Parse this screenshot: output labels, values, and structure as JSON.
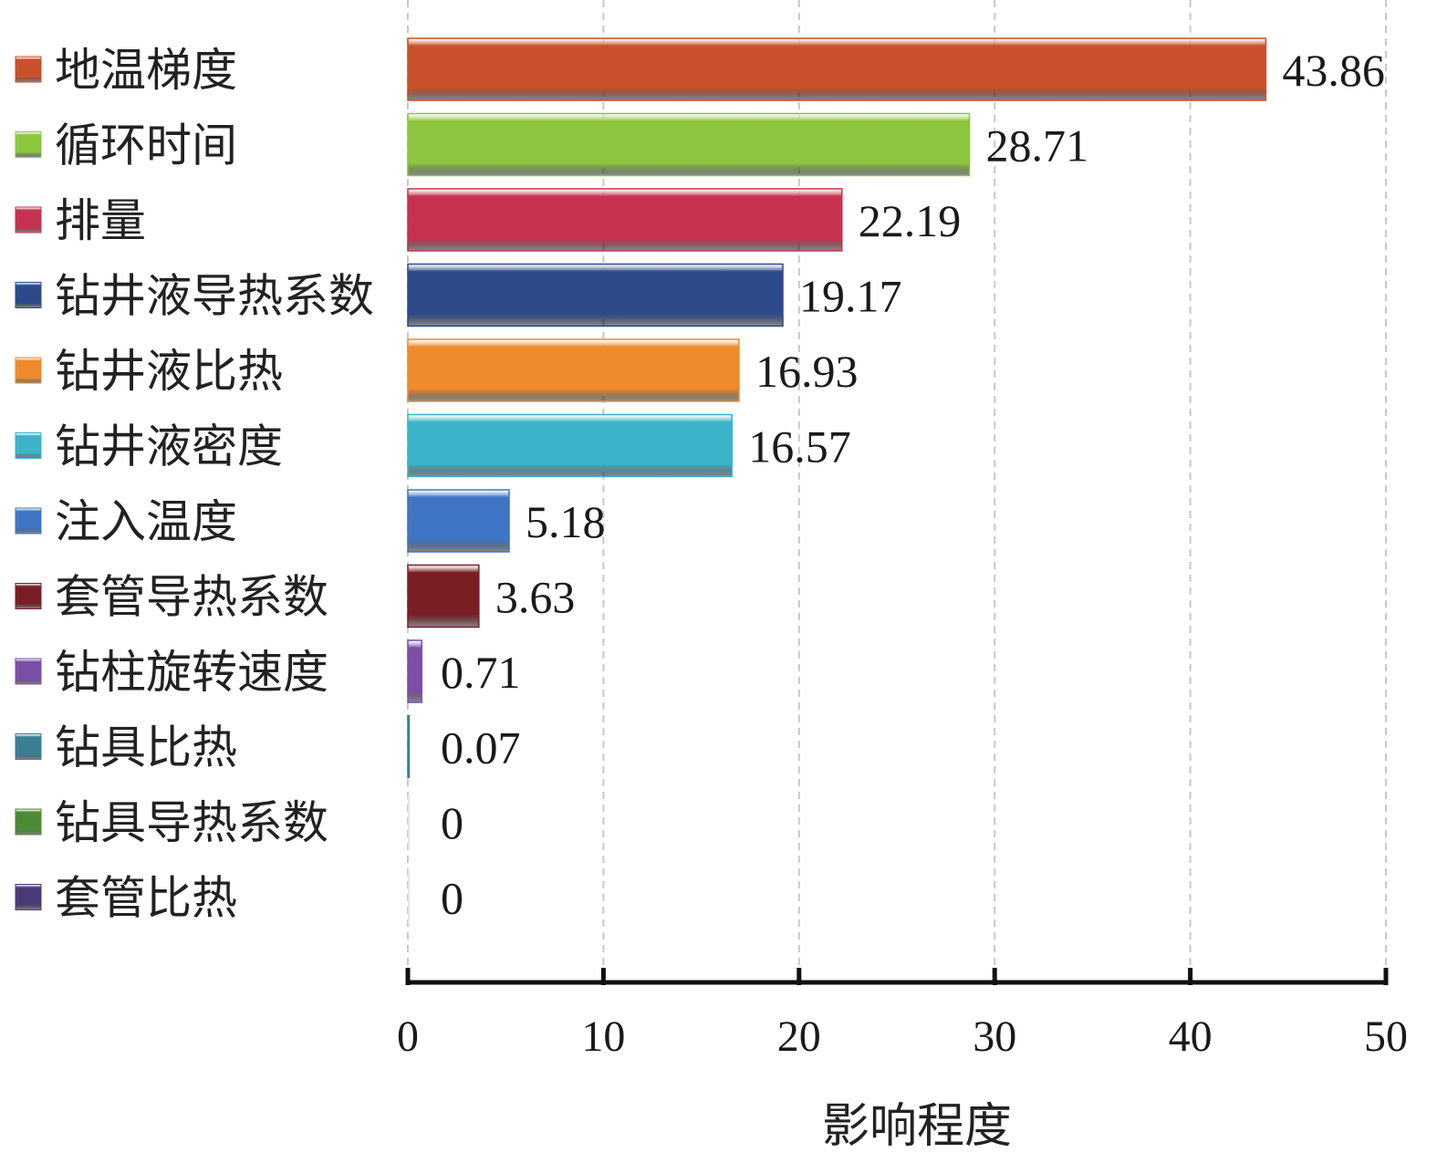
{
  "chart_data": {
    "type": "bar",
    "orientation": "horizontal",
    "categories": [
      "地温梯度",
      "循环时间",
      "排量",
      "钻井液导热系数",
      "钻井液比热",
      "钻井液密度",
      "注入温度",
      "套管导热系数",
      "钻柱旋转速度",
      "钻具比热",
      "钻具导热系数",
      "套管比热"
    ],
    "values": [
      43.86,
      28.71,
      22.19,
      19.17,
      16.93,
      16.57,
      5.18,
      3.63,
      0.71,
      0.07,
      0,
      0
    ],
    "value_labels": [
      "43.86",
      "28.71",
      "22.19",
      "19.17",
      "16.93",
      "16.57",
      "5.18",
      "3.63",
      "0.71",
      "0.07",
      "0",
      "0"
    ],
    "colors": [
      "#c8502a",
      "#8cc63f",
      "#c6324f",
      "#2e4a8a",
      "#ef8a2c",
      "#3cb3c9",
      "#3f75c4",
      "#7a1e26",
      "#7b4ea8",
      "#3b7f95",
      "#4c8a35",
      "#4b3a7a"
    ],
    "xlabel": "影响程度",
    "xlim": [
      0,
      50
    ],
    "xticks": [
      "0",
      "10",
      "20",
      "30",
      "40",
      "50"
    ],
    "grid": "vertical-dashed",
    "legend": "left"
  }
}
